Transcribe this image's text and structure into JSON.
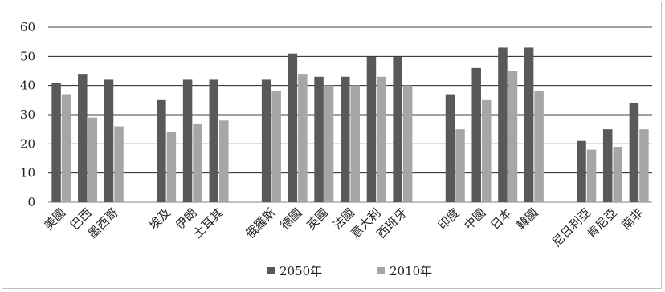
{
  "chart_data": {
    "type": "bar",
    "ylim": [
      0,
      60
    ],
    "yticks": [
      0,
      10,
      20,
      30,
      40,
      50,
      60
    ],
    "grid": true,
    "legend_position": "bottom",
    "groups": [
      {
        "categories": [
          "美國",
          "巴西",
          "墨西哥"
        ]
      },
      {
        "categories": [
          "埃及",
          "伊朗",
          "土耳其"
        ]
      },
      {
        "categories": [
          "俄羅斯",
          "德國",
          "英國",
          "法國",
          "意大利",
          "西班牙"
        ]
      },
      {
        "categories": [
          "印度",
          "中國",
          "日本",
          "韓國"
        ]
      },
      {
        "categories": [
          "尼日利亞",
          "肯尼亞",
          "南非"
        ]
      }
    ],
    "series": [
      {
        "name": "2050年",
        "color": "#595959",
        "values": [
          41,
          44,
          42,
          35,
          42,
          42,
          42,
          51,
          43,
          43,
          50,
          50,
          37,
          46,
          53,
          53,
          21,
          25,
          34
        ]
      },
      {
        "name": "2010年",
        "color": "#a6a6a6",
        "values": [
          37,
          29,
          26,
          24,
          27,
          28,
          38,
          44,
          40,
          40,
          43,
          40,
          25,
          35,
          45,
          38,
          18,
          19,
          25
        ]
      }
    ]
  }
}
